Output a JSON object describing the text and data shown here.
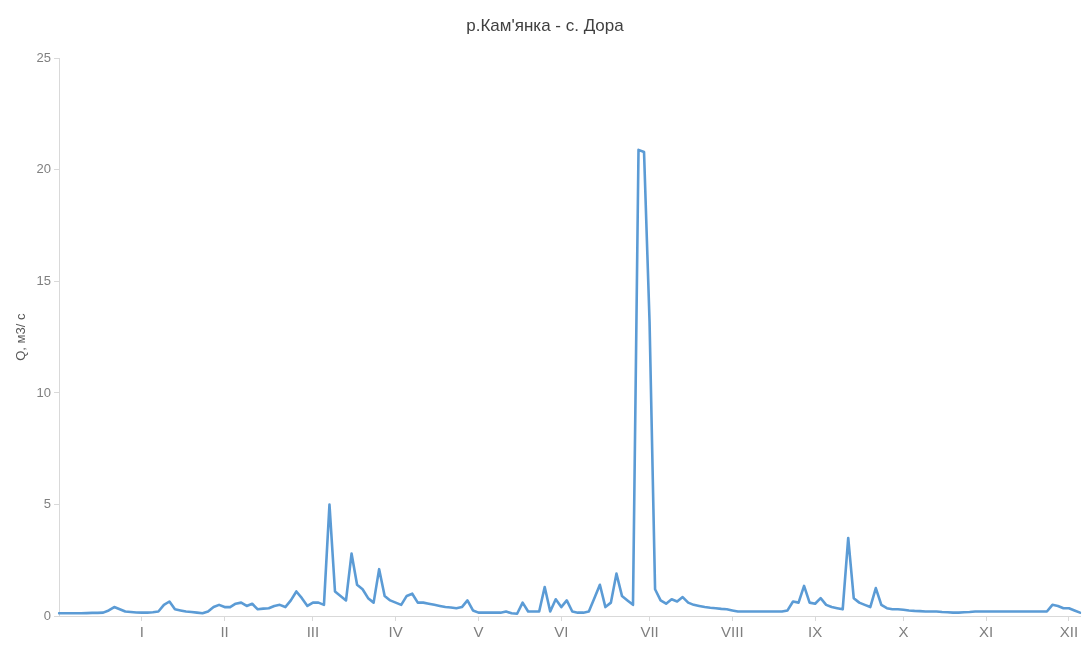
{
  "chart_data": {
    "type": "line",
    "title": "р.Кам'янка - с. Дора",
    "ylabel": "Q, м3/ с",
    "categories": [
      null,
      null,
      null,
      null,
      null,
      null,
      null,
      null,
      null,
      null,
      null,
      null,
      null,
      null,
      null,
      "I",
      null,
      null,
      null,
      null,
      null,
      null,
      null,
      null,
      null,
      null,
      null,
      null,
      null,
      null,
      "II",
      null,
      null,
      null,
      null,
      null,
      null,
      null,
      null,
      null,
      null,
      null,
      null,
      null,
      null,
      null,
      "III",
      null,
      null,
      null,
      null,
      null,
      null,
      null,
      null,
      null,
      null,
      null,
      null,
      null,
      null,
      "IV",
      null,
      null,
      null,
      null,
      null,
      null,
      null,
      null,
      null,
      null,
      null,
      null,
      null,
      null,
      "V",
      null,
      null,
      null,
      null,
      null,
      null,
      null,
      null,
      null,
      null,
      null,
      null,
      null,
      null,
      "VI",
      null,
      null,
      null,
      null,
      null,
      null,
      null,
      null,
      null,
      null,
      null,
      null,
      null,
      null,
      null,
      "VII",
      null,
      null,
      null,
      null,
      null,
      null,
      null,
      null,
      null,
      null,
      null,
      null,
      null,
      null,
      "VIII",
      null,
      null,
      null,
      null,
      null,
      null,
      null,
      null,
      null,
      null,
      null,
      null,
      null,
      null,
      "IX",
      null,
      null,
      null,
      null,
      null,
      null,
      null,
      null,
      null,
      null,
      null,
      null,
      null,
      null,
      null,
      "X",
      null,
      null,
      null,
      null,
      null,
      null,
      null,
      null,
      null,
      null,
      null,
      null,
      null,
      null,
      "XI",
      null,
      null,
      null,
      null,
      null,
      null,
      null,
      null,
      null,
      null,
      null,
      null,
      null,
      null,
      "XII",
      null,
      null
    ],
    "series": [
      {
        "color": "#5b9bd5",
        "values": [
          0.12,
          0.12,
          0.12,
          0.12,
          0.12,
          0.13,
          0.14,
          0.14,
          0.15,
          0.25,
          0.4,
          0.3,
          0.2,
          0.18,
          0.16,
          0.15,
          0.15,
          0.17,
          0.2,
          0.5,
          0.65,
          0.3,
          0.25,
          0.2,
          0.18,
          0.15,
          0.12,
          0.2,
          0.4,
          0.5,
          0.4,
          0.4,
          0.55,
          0.6,
          0.45,
          0.55,
          0.3,
          0.33,
          0.35,
          0.45,
          0.5,
          0.4,
          0.7,
          1.1,
          0.8,
          0.45,
          0.6,
          0.6,
          0.5,
          5.0,
          1.1,
          0.9,
          0.7,
          2.8,
          1.4,
          1.2,
          0.8,
          0.6,
          2.1,
          0.9,
          0.7,
          0.6,
          0.5,
          0.9,
          1.0,
          0.6,
          0.6,
          0.55,
          0.5,
          0.45,
          0.4,
          0.38,
          0.35,
          0.4,
          0.7,
          0.25,
          0.15,
          0.15,
          0.15,
          0.15,
          0.15,
          0.2,
          0.12,
          0.1,
          0.6,
          0.2,
          0.2,
          0.2,
          1.3,
          0.2,
          0.75,
          0.4,
          0.7,
          0.2,
          0.15,
          0.15,
          0.2,
          0.8,
          1.4,
          0.4,
          0.6,
          1.9,
          0.9,
          0.7,
          0.5,
          20.9,
          20.8,
          13.2,
          1.2,
          0.7,
          0.55,
          0.75,
          0.65,
          0.85,
          0.6,
          0.5,
          0.45,
          0.4,
          0.37,
          0.35,
          0.32,
          0.3,
          0.25,
          0.2,
          0.2,
          0.2,
          0.2,
          0.2,
          0.2,
          0.2,
          0.2,
          0.2,
          0.25,
          0.65,
          0.6,
          1.35,
          0.6,
          0.55,
          0.8,
          0.5,
          0.4,
          0.35,
          0.3,
          3.5,
          0.8,
          0.6,
          0.5,
          0.4,
          1.25,
          0.5,
          0.35,
          0.3,
          0.3,
          0.28,
          0.25,
          0.23,
          0.22,
          0.2,
          0.2,
          0.2,
          0.18,
          0.17,
          0.15,
          0.15,
          0.17,
          0.18,
          0.2,
          0.2,
          0.2,
          0.2,
          0.2,
          0.2,
          0.2,
          0.2,
          0.2,
          0.2,
          0.2,
          0.2,
          0.2,
          0.2,
          0.5,
          0.45,
          0.35,
          0.35,
          0.25,
          0.15
        ]
      }
    ],
    "ylim": [
      0,
      25
    ],
    "yticks": [
      0,
      5,
      10,
      15,
      20,
      25
    ],
    "grid": false,
    "legend": false,
    "marker": "none",
    "line_style": "solid"
  }
}
